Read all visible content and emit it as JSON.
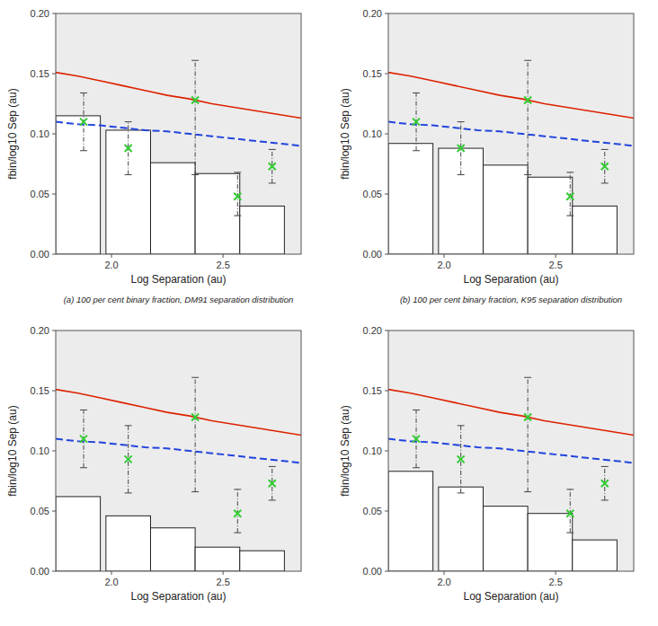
{
  "chart_data": [
    {
      "type": "bar",
      "xlabel": "Log Separation (au)",
      "ylabel": "fbin/log10 Sep (au)",
      "annotations": [
        "(a) 100 per cent binary fraction, DM91 separation distribution"
      ],
      "xlim": [
        1.75,
        2.85
      ],
      "ylim": [
        0.0,
        0.2
      ],
      "xticks": [
        {
          "value": 2.0,
          "label": "2.0"
        },
        2.5
      ],
      "yticks": [
        {
          "value": 0.0,
          "label": "0.00"
        },
        0.05,
        {
          "value": 0.1,
          "label": "0.10"
        },
        0.15,
        {
          "value": 0.2,
          "label": "0.20"
        }
      ],
      "series": [
        {
          "type": "bar",
          "color": "#ffffff",
          "x": [
            1.75,
            1.975,
            2.175,
            2.375,
            2.575
          ],
          "width": 0.2,
          "values": [
            0.115,
            0.103,
            0.076,
            0.067,
            0.04
          ]
        },
        {
          "type": "line",
          "color": "#dd2200",
          "line_style": "solid",
          "x": [
            1.75,
            1.85,
            1.95,
            2.05,
            2.15,
            2.25,
            2.35,
            2.45,
            2.55,
            2.65,
            2.75,
            2.85
          ],
          "values": [
            0.151,
            0.148,
            0.144,
            0.14,
            0.136,
            0.132,
            0.129,
            0.125,
            0.122,
            0.119,
            0.116,
            0.113
          ]
        },
        {
          "type": "line",
          "color": "#2244dd",
          "line_style": "dashed",
          "x": [
            1.75,
            1.85,
            1.95,
            2.05,
            2.15,
            2.25,
            2.35,
            2.45,
            2.55,
            2.65,
            2.75,
            2.85
          ],
          "values": [
            0.11,
            0.108,
            0.107,
            0.105,
            0.103,
            0.102,
            0.1,
            0.098,
            0.096,
            0.094,
            0.092,
            0.09
          ]
        },
        {
          "type": "scatter",
          "color": "#33cc33",
          "marker": "x",
          "x": [
            1.875,
            2.075,
            2.375,
            2.565,
            2.72
          ],
          "values": [
            0.11,
            0.088,
            0.128,
            0.048,
            0.073
          ],
          "error_lo": [
            0.024,
            0.022,
            0.062,
            0.016,
            0.014
          ],
          "error_hi": [
            0.024,
            0.022,
            0.033,
            0.02,
            0.014
          ]
        }
      ]
    },
    {
      "type": "bar",
      "xlabel": "Log Separation (au)",
      "ylabel": "fbin/log10 Sep (au)",
      "annotations": [
        "(b) 100 per cent binary fraction, K95 separation distribution"
      ],
      "xlim": [
        1.75,
        2.85
      ],
      "ylim": [
        0.0,
        0.2
      ],
      "xticks": [
        {
          "value": 2.0,
          "label": "2.0"
        },
        2.5
      ],
      "yticks": [
        {
          "value": 0.0,
          "label": "0.00"
        },
        0.05,
        {
          "value": 0.1,
          "label": "0.10"
        },
        0.15,
        {
          "value": 0.2,
          "label": "0.20"
        }
      ],
      "series": [
        {
          "type": "bar",
          "color": "#ffffff",
          "x": [
            1.75,
            1.975,
            2.175,
            2.375,
            2.575
          ],
          "width": 0.2,
          "values": [
            0.092,
            0.088,
            0.074,
            0.064,
            0.04
          ]
        },
        {
          "type": "line",
          "color": "#dd2200",
          "line_style": "solid",
          "x": [
            1.75,
            1.85,
            1.95,
            2.05,
            2.15,
            2.25,
            2.35,
            2.45,
            2.55,
            2.65,
            2.75,
            2.85
          ],
          "values": [
            0.151,
            0.148,
            0.144,
            0.14,
            0.136,
            0.132,
            0.129,
            0.125,
            0.122,
            0.119,
            0.116,
            0.113
          ]
        },
        {
          "type": "line",
          "color": "#2244dd",
          "line_style": "dashed",
          "x": [
            1.75,
            1.85,
            1.95,
            2.05,
            2.15,
            2.25,
            2.35,
            2.45,
            2.55,
            2.65,
            2.75,
            2.85
          ],
          "values": [
            0.11,
            0.108,
            0.107,
            0.105,
            0.103,
            0.102,
            0.1,
            0.098,
            0.096,
            0.094,
            0.092,
            0.09
          ]
        },
        {
          "type": "scatter",
          "color": "#33cc33",
          "marker": "x",
          "x": [
            1.875,
            2.075,
            2.375,
            2.565,
            2.72
          ],
          "values": [
            0.11,
            0.088,
            0.128,
            0.048,
            0.073
          ],
          "error_lo": [
            0.024,
            0.022,
            0.062,
            0.016,
            0.014
          ],
          "error_hi": [
            0.024,
            0.022,
            0.033,
            0.02,
            0.014
          ]
        }
      ]
    },
    {
      "type": "bar",
      "xlabel": "Log Separation (au)",
      "ylabel": "fbin/log10 Sep (au)",
      "xlim": [
        1.75,
        2.85
      ],
      "ylim": [
        0.0,
        0.2
      ],
      "xticks": [
        {
          "value": 2.0,
          "label": "2.0"
        },
        2.5
      ],
      "yticks": [
        {
          "value": 0.0,
          "label": "0.00"
        },
        0.05,
        {
          "value": 0.1,
          "label": "0.10"
        },
        0.15,
        {
          "value": 0.2,
          "label": "0.20"
        }
      ],
      "series": [
        {
          "type": "bar",
          "color": "#ffffff",
          "x": [
            1.75,
            1.975,
            2.175,
            2.375,
            2.575
          ],
          "width": 0.2,
          "values": [
            0.062,
            0.046,
            0.036,
            0.02,
            0.017
          ]
        },
        {
          "type": "line",
          "color": "#dd2200",
          "line_style": "solid",
          "x": [
            1.75,
            1.85,
            1.95,
            2.05,
            2.15,
            2.25,
            2.35,
            2.45,
            2.55,
            2.65,
            2.75,
            2.85
          ],
          "values": [
            0.151,
            0.148,
            0.144,
            0.14,
            0.136,
            0.132,
            0.129,
            0.125,
            0.122,
            0.119,
            0.116,
            0.113
          ]
        },
        {
          "type": "line",
          "color": "#2244dd",
          "line_style": "dashed",
          "x": [
            1.75,
            1.85,
            1.95,
            2.05,
            2.15,
            2.25,
            2.35,
            2.45,
            2.55,
            2.65,
            2.75,
            2.85
          ],
          "values": [
            0.11,
            0.108,
            0.107,
            0.105,
            0.103,
            0.102,
            0.1,
            0.098,
            0.096,
            0.094,
            0.092,
            0.09
          ]
        },
        {
          "type": "scatter",
          "color": "#33cc33",
          "marker": "x",
          "x": [
            1.875,
            2.075,
            2.375,
            2.565,
            2.72
          ],
          "values": [
            0.11,
            0.093,
            0.128,
            0.048,
            0.073
          ],
          "error_lo": [
            0.024,
            0.028,
            0.062,
            0.016,
            0.014
          ],
          "error_hi": [
            0.024,
            0.028,
            0.033,
            0.02,
            0.014
          ]
        }
      ]
    },
    {
      "type": "bar",
      "xlabel": "Log Separation (au)",
      "ylabel": "fbin/log10 Sep (au)",
      "xlim": [
        1.75,
        2.85
      ],
      "ylim": [
        0.0,
        0.2
      ],
      "xticks": [
        {
          "value": 2.0,
          "label": "2.0"
        },
        2.5
      ],
      "yticks": [
        {
          "value": 0.0,
          "label": "0.00"
        },
        0.05,
        {
          "value": 0.1,
          "label": "0.10"
        },
        0.15,
        {
          "value": 0.2,
          "label": "0.20"
        }
      ],
      "series": [
        {
          "type": "bar",
          "color": "#ffffff",
          "x": [
            1.75,
            1.975,
            2.175,
            2.375,
            2.575
          ],
          "width": 0.2,
          "values": [
            0.083,
            0.07,
            0.054,
            0.048,
            0.026
          ]
        },
        {
          "type": "line",
          "color": "#dd2200",
          "line_style": "solid",
          "x": [
            1.75,
            1.85,
            1.95,
            2.05,
            2.15,
            2.25,
            2.35,
            2.45,
            2.55,
            2.65,
            2.75,
            2.85
          ],
          "values": [
            0.151,
            0.148,
            0.144,
            0.14,
            0.136,
            0.132,
            0.129,
            0.125,
            0.122,
            0.119,
            0.116,
            0.113
          ]
        },
        {
          "type": "line",
          "color": "#2244dd",
          "line_style": "dashed",
          "x": [
            1.75,
            1.85,
            1.95,
            2.05,
            2.15,
            2.25,
            2.35,
            2.45,
            2.55,
            2.65,
            2.75,
            2.85
          ],
          "values": [
            0.11,
            0.108,
            0.107,
            0.105,
            0.103,
            0.102,
            0.1,
            0.098,
            0.096,
            0.094,
            0.092,
            0.09
          ]
        },
        {
          "type": "scatter",
          "color": "#33cc33",
          "marker": "x",
          "x": [
            1.875,
            2.075,
            2.375,
            2.565,
            2.72
          ],
          "values": [
            0.11,
            0.093,
            0.128,
            0.048,
            0.073
          ],
          "error_lo": [
            0.024,
            0.028,
            0.062,
            0.016,
            0.014
          ],
          "error_hi": [
            0.024,
            0.028,
            0.033,
            0.02,
            0.014
          ]
        }
      ]
    }
  ]
}
